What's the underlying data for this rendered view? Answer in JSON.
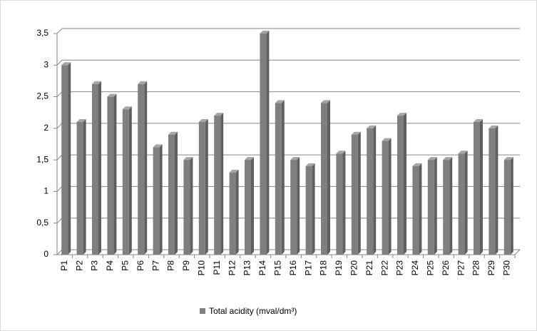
{
  "chart_data": {
    "type": "bar",
    "categories": [
      "P1",
      "P2",
      "P3",
      "P4",
      "P5",
      "P6",
      "P7",
      "P8",
      "P9",
      "P10",
      "P11",
      "P12",
      "P13",
      "P14",
      "P15",
      "P16",
      "P17",
      "P18",
      "P19",
      "P20",
      "P21",
      "P22",
      "P23",
      "P24",
      "P25",
      "P26",
      "P27",
      "P28",
      "P29",
      "P30"
    ],
    "series": [
      {
        "name": "Total acidity (mval/dm³)",
        "color": "#7f7f7f",
        "values": [
          3,
          2.1,
          2.7,
          2.5,
          2.3,
          2.7,
          1.7,
          1.9,
          1.5,
          2.1,
          2.2,
          1.3,
          1.5,
          3.5,
          2.4,
          1.5,
          1.4,
          2.4,
          1.6,
          1.9,
          2,
          1.8,
          2.2,
          1.4,
          1.5,
          1.5,
          1.6,
          2.1,
          2,
          1.5
        ]
      }
    ],
    "ylim": [
      0,
      3.5
    ],
    "yticks": [
      0,
      {
        "value": 0.5,
        "label": "0,5"
      },
      1,
      {
        "value": 1.5,
        "label": "1,5"
      },
      2,
      {
        "value": 2.5,
        "label": "2,5"
      },
      3,
      {
        "value": 3.5,
        "label": "3,5"
      }
    ],
    "grid": true,
    "legend": "bottom"
  }
}
